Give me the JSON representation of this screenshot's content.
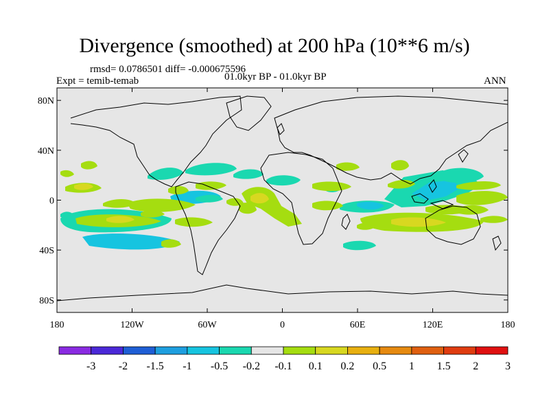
{
  "title": "Divergence (smoothed) at 200 hPa (10**6 m/s)",
  "stats_line": "rmsd= 0.0786501 diff= -0.000675596",
  "experiment_line": "Expt = temib-temab",
  "period_line": "01.0kyr BP - 01.0kyr BP",
  "season": "ANN",
  "axes": {
    "y_ticks": [
      {
        "value": 80,
        "label": "80N"
      },
      {
        "value": 40,
        "label": "40N"
      },
      {
        "value": 0,
        "label": "0"
      },
      {
        "value": -40,
        "label": "40S"
      },
      {
        "value": -80,
        "label": "80S"
      }
    ],
    "x_ticks": [
      {
        "value": -180,
        "label": "180"
      },
      {
        "value": -120,
        "label": "120W"
      },
      {
        "value": -60,
        "label": "60W"
      },
      {
        "value": 0,
        "label": "0"
      },
      {
        "value": 60,
        "label": "60E"
      },
      {
        "value": 120,
        "label": "120E"
      },
      {
        "value": 180,
        "label": "180"
      }
    ],
    "lon_range": [
      -180,
      180
    ],
    "lat_range": [
      -90,
      90
    ]
  },
  "colorbar": {
    "colors": [
      "#8a2be2",
      "#4b28d8",
      "#1f5fd6",
      "#1e9fe0",
      "#16c4e0",
      "#1ad8b0",
      "#e6e6e6",
      "#a5dd10",
      "#d8d820",
      "#e8b010",
      "#e68a10",
      "#e06010",
      "#e03c10",
      "#e01010"
    ],
    "labels": [
      "-3",
      "-2",
      "-1.5",
      "-1",
      "-0.5",
      "-0.2",
      "-0.1",
      "0.1",
      "0.2",
      "0.5",
      "1",
      "1.5",
      "2",
      "3"
    ]
  },
  "background_color": "#e6e6e6",
  "chart_data": {
    "type": "filled-contour map",
    "field": "200 hPa smoothed divergence difference",
    "units": "10**6 m/s",
    "levels": [
      -3,
      -2,
      -1.5,
      -1,
      -0.5,
      -0.2,
      -0.1,
      0.1,
      0.2,
      0.5,
      1,
      1.5,
      2,
      3
    ],
    "anomalies": [
      {
        "lon": 165,
        "lat": 22,
        "level": "-0.5",
        "color": "#1ad8b0"
      },
      {
        "lon": 122,
        "lat": 5,
        "level": "-1",
        "color": "#16c4e0"
      },
      {
        "lon": 108,
        "lat": 10,
        "level": "-0.5",
        "color": "#1ad8b0"
      },
      {
        "lon": 160,
        "lat": 8,
        "level": "0.2",
        "color": "#a5dd10"
      },
      {
        "lon": 100,
        "lat": -15,
        "level": "0.2",
        "color": "#a5dd10"
      },
      {
        "lon": 130,
        "lat": -7,
        "level": "0.2",
        "color": "#a5dd10"
      },
      {
        "lon": 150,
        "lat": 18,
        "level": "0.2",
        "color": "#a5dd10"
      },
      {
        "lon": 62,
        "lat": 0,
        "level": "-0.5",
        "color": "#16c4e0"
      },
      {
        "lon": 60,
        "lat": -10,
        "level": "0.2",
        "color": "#a5dd10"
      },
      {
        "lon": 30,
        "lat": 0,
        "level": "0.2",
        "color": "#a5dd10"
      },
      {
        "lon": 18,
        "lat": 17,
        "level": "0.2",
        "color": "#a5dd10"
      },
      {
        "lon": 2,
        "lat": 17,
        "level": "-0.5",
        "color": "#1ad8b0"
      },
      {
        "lon": 42,
        "lat": -32,
        "level": "-0.5",
        "color": "#1ad8b0"
      },
      {
        "lon": -20,
        "lat": 0,
        "level": "0.5",
        "color": "#d8d820"
      },
      {
        "lon": -25,
        "lat": -10,
        "level": "0.2",
        "color": "#a5dd10"
      },
      {
        "lon": -45,
        "lat": 20,
        "level": "-0.5",
        "color": "#1ad8b0"
      },
      {
        "lon": -80,
        "lat": 22,
        "level": "-0.5",
        "color": "#1ad8b0"
      },
      {
        "lon": -75,
        "lat": 0,
        "level": "-0.5",
        "color": "#16c4e0"
      },
      {
        "lon": -120,
        "lat": 2,
        "level": "0.2",
        "color": "#a5dd10"
      },
      {
        "lon": -150,
        "lat": -15,
        "level": "-0.5",
        "color": "#1ad8b0"
      },
      {
        "lon": -130,
        "lat": -32,
        "level": "-0.5",
        "color": "#1ad8b0"
      },
      {
        "lon": -155,
        "lat": 10,
        "level": "0.2",
        "color": "#a5dd10"
      },
      {
        "lon": -40,
        "lat": -35,
        "level": "0.2",
        "color": "#a5dd10"
      }
    ]
  }
}
